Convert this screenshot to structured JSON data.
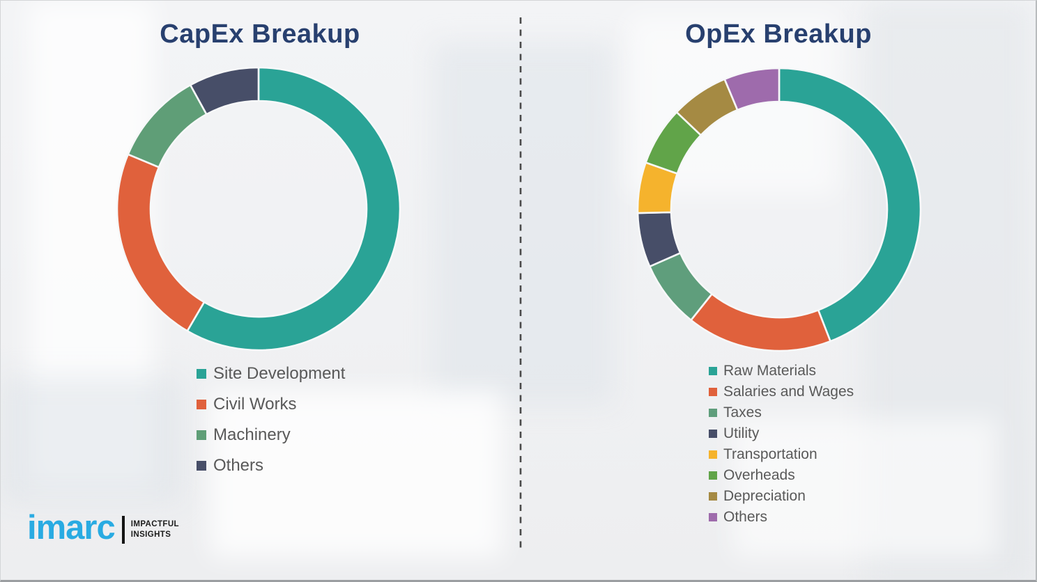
{
  "titles": {
    "left": "CapEx Breakup",
    "right": "OpEx Breakup",
    "title_color": "#28406f"
  },
  "legend_text_color": "#595959",
  "chart_data": [
    {
      "type": "pie",
      "variant": "donut",
      "title": "CapEx Breakup",
      "labels": [
        "Site Development",
        "Civil Works",
        "Machinery",
        "Others"
      ],
      "values": [
        58.4,
        22.9,
        10.7,
        8.0
      ],
      "colors": [
        "#2aa396",
        "#e0613c",
        "#5f9e77",
        "#474e68"
      ],
      "start_angle_deg": 0,
      "direction": "clockwise",
      "legend_position": "below-left",
      "data_labels": "none"
    },
    {
      "type": "pie",
      "variant": "donut",
      "title": "OpEx Breakup",
      "labels": [
        "Raw Materials",
        "Salaries and Wages",
        "Taxes",
        "Utility",
        "Transportation",
        "Overheads",
        "Depreciation",
        "Others"
      ],
      "values": [
        44.1,
        16.6,
        7.7,
        6.2,
        5.8,
        6.7,
        6.6,
        6.3
      ],
      "colors": [
        "#2aa396",
        "#e0613c",
        "#5f9e7c",
        "#474e68",
        "#f5b32d",
        "#61a449",
        "#a58a43",
        "#9e6bac"
      ],
      "start_angle_deg": 0,
      "direction": "clockwise",
      "legend_position": "below-left",
      "data_labels": "none"
    }
  ],
  "logo": {
    "brand": "imarc",
    "brand_color": "#29abe2",
    "tagline_line1": "IMPACTFUL",
    "tagline_line2": "INSIGHTS"
  },
  "divider": {
    "style": "dashed",
    "color": "#4a4a4a"
  }
}
